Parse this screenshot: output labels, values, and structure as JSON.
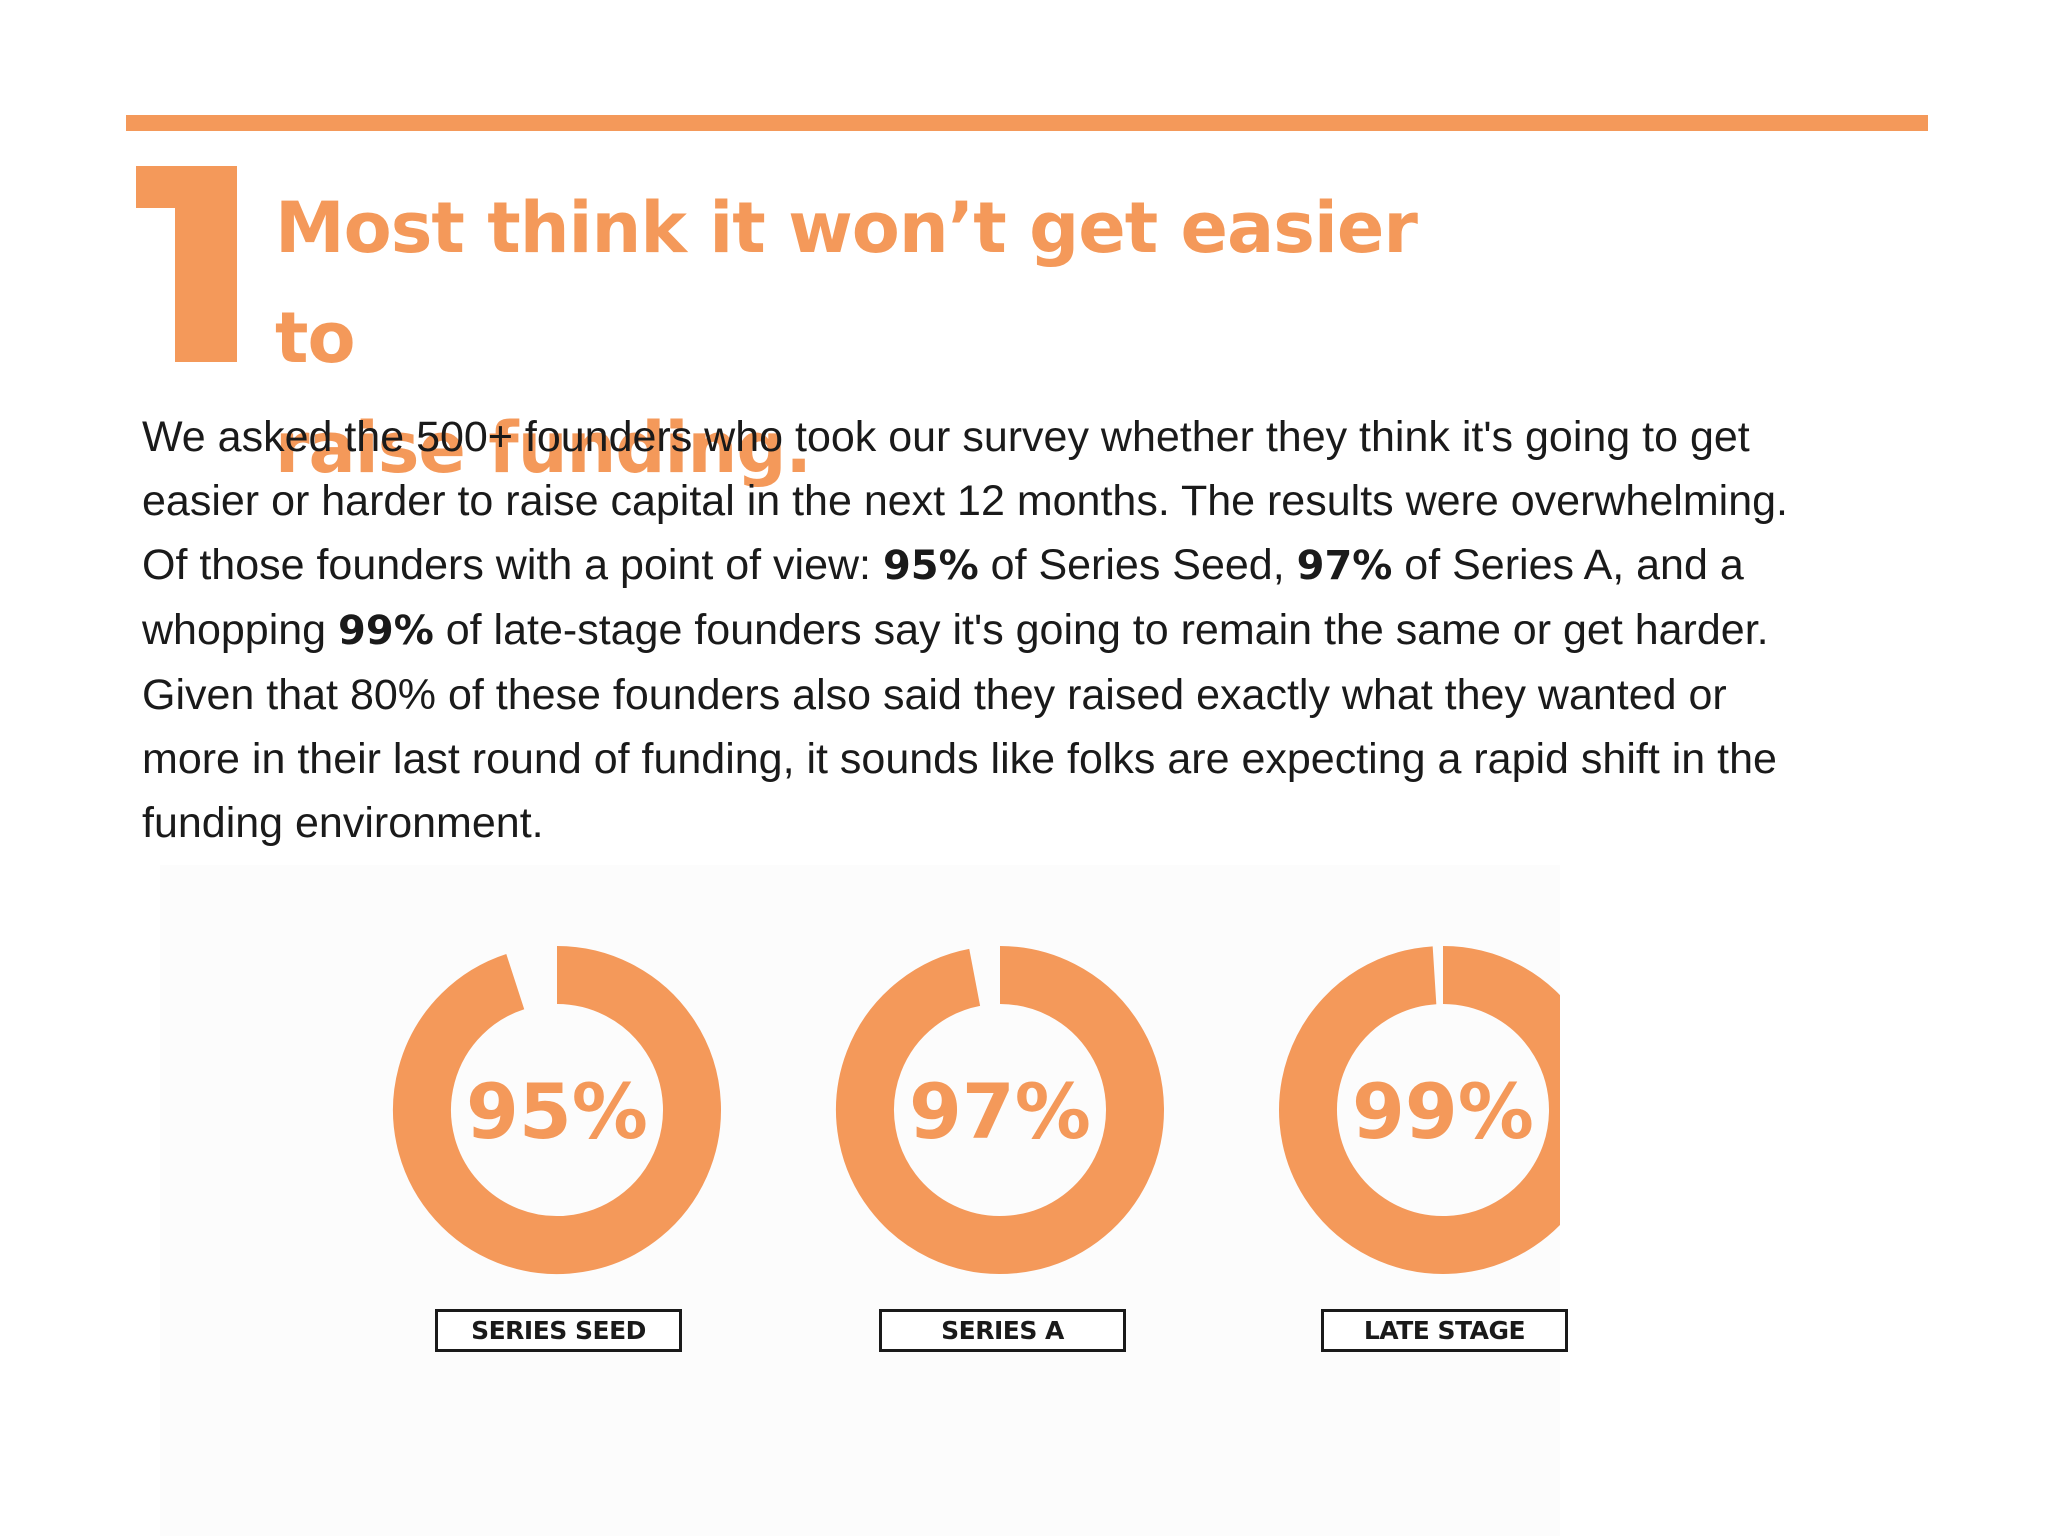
{
  "section": {
    "number": "1",
    "headline_line1": "Most think it won’t get easier to",
    "headline_line2": "raise funding."
  },
  "body": {
    "line1": "We asked the 500+ founders who took our survey whether they think it's going to get",
    "line2": "easier or harder to raise capital in the next 12 months. The results were overwhelming.",
    "line3_pre": "Of those founders with a point of view: ",
    "line3_b1": "95%",
    "line3_mid": " of Series Seed, ",
    "line3_b2": "97%",
    "line3_post": " of Series A, and a",
    "line4_pre": "whopping ",
    "line4_b": "99%",
    "line4_post": " of late-stage founders say it's going to remain the same or get harder.",
    "line5": "Given that 80% of these founders also said they raised exactly what they wanted or",
    "line6": "more in their last round of funding, it sounds like folks are expecting a rapid shift in the",
    "line7": "funding environment."
  },
  "colors": {
    "accent": "#f4995a",
    "text": "#1a1a1a"
  },
  "chart_data": {
    "type": "pie",
    "variant": "donut",
    "charts": [
      {
        "label": "SERIES SEED",
        "value": 95,
        "display": "95%"
      },
      {
        "label": "SERIES A",
        "value": 97,
        "display": "97%"
      },
      {
        "label": "LATE STAGE",
        "value": 99,
        "display": "99%"
      }
    ],
    "unit": "%"
  }
}
